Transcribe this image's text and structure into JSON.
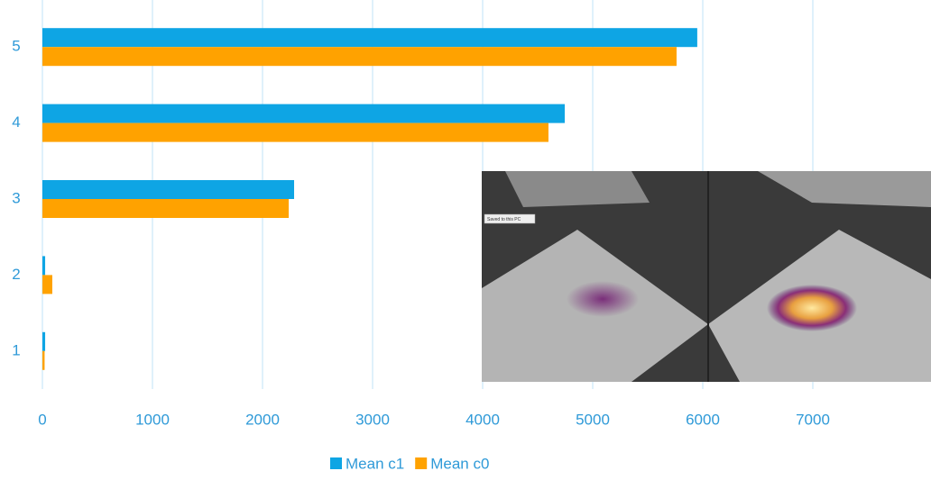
{
  "chart_data": {
    "type": "hbar",
    "categories": [
      "1",
      "2",
      "3",
      "4",
      "5"
    ],
    "series": [
      {
        "name": "Mean c1",
        "color": "#0ea5e4",
        "values": [
          25,
          25,
          2287,
          4746,
          5950
        ]
      },
      {
        "name": "Mean c0",
        "color": "#ffa200",
        "values": [
          20,
          90,
          2238,
          4598,
          5762
        ]
      }
    ],
    "xlim": [
      0,
      8000
    ],
    "xticks": [
      0,
      1000,
      2000,
      3000,
      4000,
      5000,
      6000,
      7000
    ],
    "grid": true,
    "legend": "bottom"
  },
  "overlay": {
    "label": "Saved to this PC"
  }
}
